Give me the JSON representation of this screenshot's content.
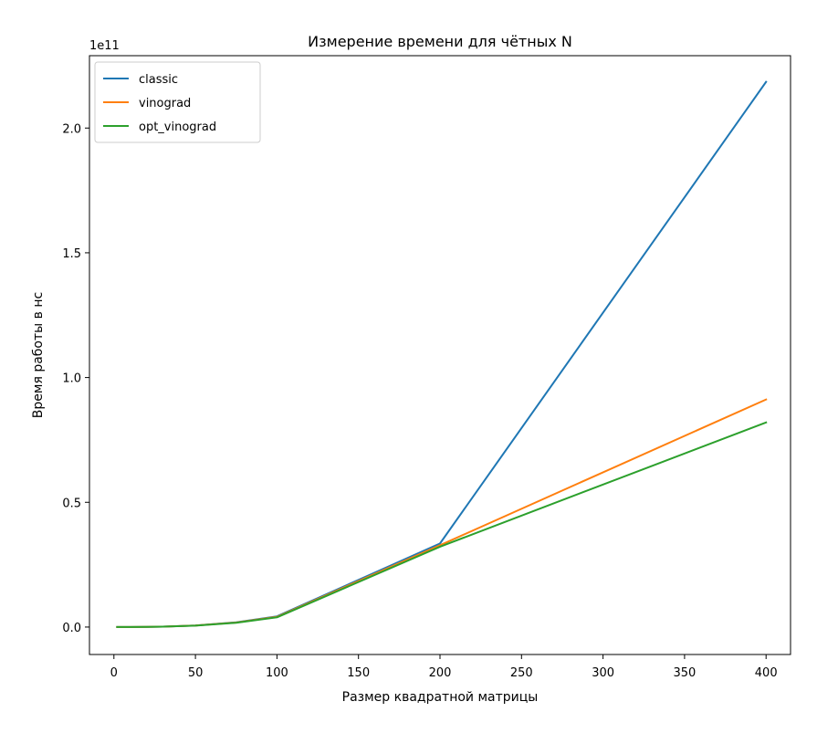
{
  "chart_data": {
    "type": "line",
    "title": "Измерение времени для чётных N",
    "xlabel": "Размер квадратной матрицы",
    "ylabel": "Время работы в нс",
    "y_offset_label": "1e11",
    "xlim": [
      -15,
      415
    ],
    "ylim": [
      -0.11,
      2.29
    ],
    "xticks": [
      0,
      50,
      100,
      150,
      200,
      250,
      300,
      350,
      400
    ],
    "xtick_labels": [
      "0",
      "50",
      "100",
      "150",
      "200",
      "250",
      "300",
      "350",
      "400"
    ],
    "yticks": [
      0.0,
      0.5,
      1.0,
      1.5,
      2.0
    ],
    "ytick_labels": [
      "0.0",
      "0.5",
      "1.0",
      "1.5",
      "2.0"
    ],
    "grid": false,
    "legend_position": "top-left",
    "x": [
      2,
      4,
      6,
      8,
      10,
      20,
      30,
      50,
      75,
      100,
      200,
      400
    ],
    "series": [
      {
        "name": "classic",
        "color": "#1f77b4",
        "values": [
          0.0,
          0.0,
          0.0,
          0.0,
          0.0,
          0.0005,
          0.0015,
          0.006,
          0.019,
          0.043,
          0.335,
          2.185
        ]
      },
      {
        "name": "vinograd",
        "color": "#ff7f0e",
        "values": [
          0.0,
          0.0,
          0.0,
          0.0,
          0.0,
          0.0005,
          0.0015,
          0.006,
          0.018,
          0.041,
          0.328,
          0.912
        ]
      },
      {
        "name": "opt_vinograd",
        "color": "#2ca02c",
        "values": [
          0.0,
          0.0,
          0.0,
          0.0,
          0.0,
          0.0005,
          0.0015,
          0.0055,
          0.017,
          0.039,
          0.322,
          0.82
        ]
      }
    ]
  }
}
